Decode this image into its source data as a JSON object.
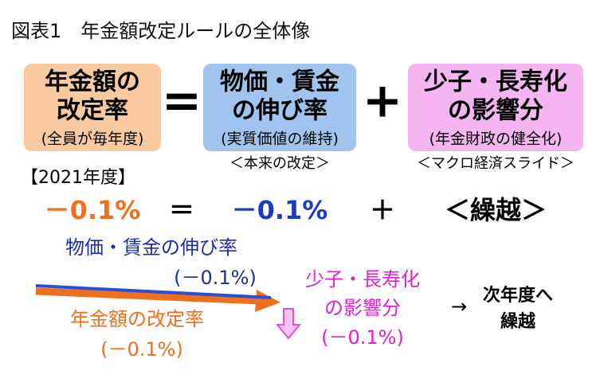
{
  "header": {
    "title": "図表1　年金額改定ルールの全体像"
  },
  "boxes": [
    {
      "line1": "年金額の",
      "line2": "改定率",
      "sub": "(全員が毎年度)"
    },
    {
      "line1": "物価・賃金",
      "line2": "の伸び率",
      "sub": "(実質価値の維持)"
    },
    {
      "line1": "少子・長寿化",
      "line2": "の影響分",
      "sub": "(年金財政の健全化)"
    }
  ],
  "operators": [
    "=",
    "+"
  ],
  "notes": [
    "＜本来の改定＞",
    "＜マクロ経済スライド＞"
  ],
  "year": "【2021年度】",
  "formula": [
    "－0.1%",
    "＝",
    "－0.1%",
    "＋",
    "＜繰越＞"
  ],
  "flow": {
    "wage": [
      "物価・賃金の伸び率",
      "(－0.1%)"
    ],
    "pension": [
      "年金額の改定率",
      "(－0.1%)"
    ],
    "slide": [
      "少子・長寿化",
      "の影響分",
      "(－0.1%)"
    ],
    "arrow": "→",
    "carry": [
      "次年度へ",
      "繰越"
    ]
  }
}
